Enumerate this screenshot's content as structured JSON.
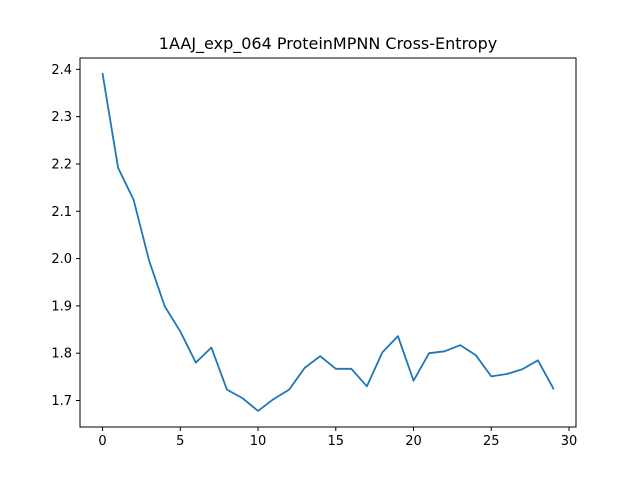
{
  "chart_data": {
    "type": "line",
    "title": "1AAJ_exp_064 ProteinMPNN Cross-Entropy",
    "xlabel": "",
    "ylabel": "",
    "xlim": [
      -1.45,
      30.45
    ],
    "ylim": [
      1.644,
      2.424
    ],
    "xticks": [
      0,
      5,
      10,
      15,
      20,
      25,
      30
    ],
    "yticks": [
      1.7,
      1.8,
      1.9,
      2.0,
      2.1,
      2.2,
      2.3,
      2.4
    ],
    "xtick_labels": [
      "0",
      "5",
      "10",
      "15",
      "20",
      "25",
      "30"
    ],
    "ytick_labels": [
      "1.7",
      "1.8",
      "1.9",
      "2.0",
      "2.1",
      "2.2",
      "2.3",
      "2.4"
    ],
    "grid": false,
    "legend": "none",
    "series": [
      {
        "color": "#1f77b4",
        "x": [
          0,
          1,
          2,
          3,
          4,
          5,
          6,
          7,
          8,
          9,
          10,
          11,
          12,
          13,
          14,
          15,
          16,
          17,
          18,
          19,
          20,
          21,
          22,
          23,
          24,
          25,
          26,
          27,
          28,
          29
        ],
        "values": [
          2.391,
          2.192,
          2.124,
          1.995,
          1.899,
          1.846,
          1.78,
          1.812,
          1.723,
          1.705,
          1.678,
          1.703,
          1.723,
          1.769,
          1.794,
          1.767,
          1.767,
          1.73,
          1.802,
          1.836,
          1.742,
          1.8,
          1.804,
          1.817,
          1.796,
          1.751,
          1.756,
          1.766,
          1.785,
          1.725
        ]
      }
    ]
  }
}
